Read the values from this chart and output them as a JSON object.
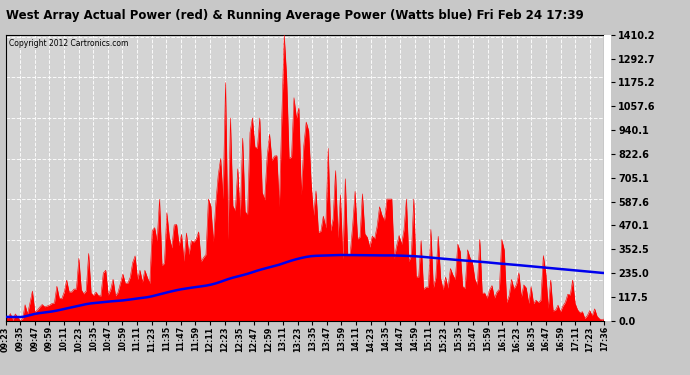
{
  "title": "West Array Actual Power (red) & Running Average Power (Watts blue) Fri Feb 24 17:39",
  "copyright": "Copyright 2012 Cartronics.com",
  "ymax": 1410.2,
  "yticks": [
    0.0,
    117.5,
    235.0,
    352.5,
    470.1,
    587.6,
    705.1,
    822.6,
    940.1,
    1057.6,
    1175.2,
    1292.7,
    1410.2
  ],
  "ytick_labels": [
    "0.0",
    "117.5",
    "235.0",
    "352.5",
    "470.1",
    "587.6",
    "705.1",
    "822.6",
    "940.1",
    "1057.6",
    "1175.2",
    "1292.7",
    "1410.2"
  ],
  "bg_color": "#c8c8c8",
  "plot_bg": "#d4d4d4",
  "red_color": "#ff0000",
  "blue_color": "#0000ee",
  "grid_color": "#aaaaaa",
  "xtick_labels": [
    "09:23",
    "09:35",
    "09:47",
    "09:59",
    "10:11",
    "10:23",
    "10:35",
    "10:47",
    "10:59",
    "11:11",
    "11:23",
    "11:35",
    "11:47",
    "11:59",
    "12:11",
    "12:23",
    "12:35",
    "12:47",
    "12:59",
    "13:11",
    "13:23",
    "13:35",
    "13:47",
    "13:59",
    "14:11",
    "14:23",
    "14:35",
    "14:47",
    "14:59",
    "15:11",
    "15:23",
    "15:35",
    "15:47",
    "15:59",
    "16:11",
    "16:23",
    "16:35",
    "16:47",
    "16:59",
    "17:11",
    "17:23",
    "17:36"
  ]
}
